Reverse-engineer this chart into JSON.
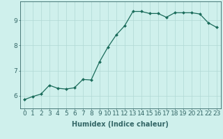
{
  "x": [
    0,
    1,
    2,
    3,
    4,
    5,
    6,
    7,
    8,
    9,
    10,
    11,
    12,
    13,
    14,
    15,
    16,
    17,
    18,
    19,
    20,
    21,
    22,
    23
  ],
  "y": [
    5.85,
    5.97,
    6.07,
    6.42,
    6.3,
    6.27,
    6.32,
    6.65,
    6.63,
    7.35,
    7.93,
    8.42,
    8.78,
    9.35,
    9.35,
    9.27,
    9.27,
    9.12,
    9.3,
    9.3,
    9.3,
    9.25,
    8.9,
    8.72
  ],
  "line_color": "#1a6b5a",
  "marker": "D",
  "marker_size": 2.0,
  "bg_color": "#cff0ec",
  "grid_color": "#b0d8d4",
  "xlabel": "Humidex (Indice chaleur)",
  "xlabel_fontsize": 7,
  "xtick_labels": [
    "0",
    "1",
    "2",
    "3",
    "4",
    "5",
    "6",
    "7",
    "8",
    "9",
    "10",
    "11",
    "12",
    "13",
    "14",
    "15",
    "16",
    "17",
    "18",
    "19",
    "20",
    "21",
    "22",
    "23"
  ],
  "ytick_values": [
    6,
    7,
    8,
    9
  ],
  "ylim": [
    5.5,
    9.75
  ],
  "xlim": [
    -0.5,
    23.5
  ],
  "tick_fontsize": 6.5,
  "axis_color": "#336666",
  "lw": 0.9
}
